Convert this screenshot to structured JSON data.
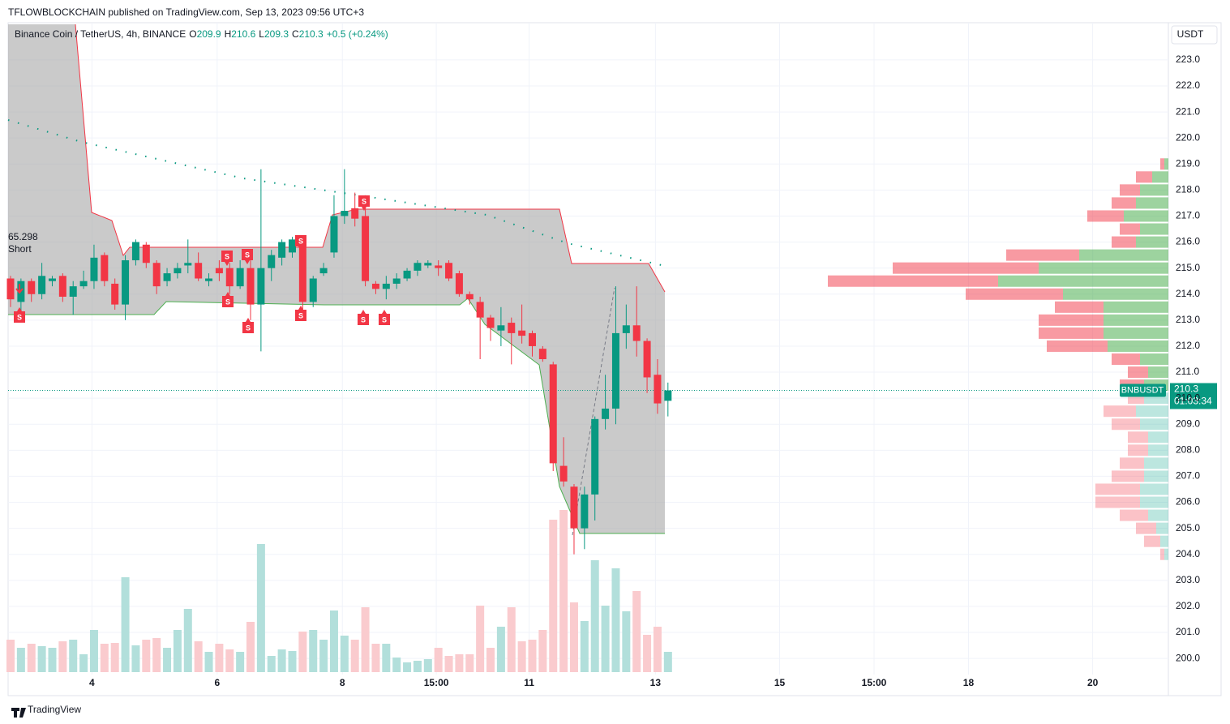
{
  "header": {
    "publisher": "TFLOWBLOCKCHAIN published on TradingView.com, Sep 13, 2023 09:56 UTC+3",
    "footer": "TradingView"
  },
  "chart_data": {
    "type": "candlestick",
    "title": "Binance Coin / TetherUS, 4h, BINANCE",
    "ohlc_prefixes": [
      "O",
      "H",
      "L",
      "C"
    ],
    "change": "+0.5 (+0.24%)",
    "currency": "USDT",
    "symbol": "BNBUSDT",
    "countdown": "01:03:34",
    "annotations": {
      "value": "65.298",
      "side": "Short",
      "signal": "S"
    },
    "up_color": "#089981",
    "down_color": "#f23645",
    "open": [
      214.6,
      213.7,
      214.5,
      214.0,
      214.5,
      214.7,
      213.9,
      214.3,
      214.5,
      215.5,
      214.4,
      213.6,
      215.3,
      215.9,
      215.2,
      214.5,
      214.8,
      215.1,
      215.2,
      214.5,
      215.0,
      215.0,
      214.3,
      215.0,
      213.6,
      215.0,
      215.4,
      215.6,
      216.0,
      213.7,
      214.8,
      215.6,
      217.0,
      217.3,
      217.0,
      214.4,
      214.2,
      214.4,
      214.6,
      214.9,
      215.1,
      215.1,
      215.2,
      214.8,
      214.0,
      213.7,
      213.1,
      212.6,
      212.9,
      212.6,
      212.5,
      211.9,
      211.3,
      207.4,
      206.6,
      205.0,
      206.3,
      209.2,
      209.6,
      212.5,
      212.8,
      212.2,
      210.9,
      209.9
    ],
    "high": [
      214.7,
      214.6,
      214.6,
      215.2,
      214.7,
      214.8,
      214.5,
      214.9,
      215.9,
      215.6,
      214.6,
      215.5,
      216.1,
      216.0,
      215.3,
      215.0,
      215.2,
      216.1,
      215.6,
      214.8,
      215.3,
      215.2,
      215.3,
      215.4,
      218.8,
      215.7,
      216.1,
      216.2,
      216.1,
      214.7,
      215.2,
      217.8,
      218.8,
      217.9,
      217.8,
      214.5,
      214.7,
      214.8,
      215.0,
      215.3,
      215.3,
      215.3,
      215.3,
      214.9,
      214.1,
      213.9,
      213.2,
      213.5,
      213.1,
      213.6,
      212.6,
      212.0,
      211.4,
      208.5,
      206.7,
      206.6,
      209.3,
      210.9,
      214.3,
      213.6,
      214.3,
      212.3,
      211.5,
      210.6
    ],
    "low": [
      213.5,
      213.3,
      213.7,
      213.8,
      214.3,
      213.7,
      213.2,
      214.2,
      214.2,
      214.3,
      213.4,
      213.0,
      215.1,
      215.0,
      214.0,
      214.3,
      214.6,
      214.8,
      214.5,
      214.3,
      214.5,
      214.0,
      214.2,
      213.0,
      211.8,
      214.5,
      215.1,
      215.4,
      213.3,
      213.5,
      214.7,
      215.4,
      216.7,
      216.6,
      214.3,
      214.0,
      213.8,
      214.2,
      214.5,
      214.7,
      215.0,
      214.7,
      214.5,
      213.9,
      213.6,
      211.5,
      212.2,
      212.0,
      211.3,
      212.1,
      211.6,
      211.4,
      207.2,
      206.6,
      204.0,
      204.2,
      205.3,
      208.8,
      209.0,
      211.9,
      211.6,
      210.2,
      209.4,
      209.3
    ],
    "close": [
      213.8,
      214.5,
      214.0,
      214.7,
      214.6,
      213.9,
      214.3,
      214.5,
      215.4,
      214.5,
      213.6,
      215.3,
      216.0,
      215.2,
      214.3,
      214.8,
      215.0,
      215.2,
      214.6,
      214.6,
      214.8,
      214.3,
      215.0,
      213.6,
      215.0,
      215.5,
      216.0,
      216.1,
      213.7,
      214.6,
      215.0,
      217.0,
      217.2,
      216.9,
      214.5,
      214.2,
      214.4,
      214.6,
      214.9,
      215.2,
      215.2,
      215.0,
      214.6,
      214.0,
      213.8,
      213.1,
      212.7,
      212.8,
      212.5,
      212.4,
      212.0,
      211.5,
      207.5,
      206.8,
      205.0,
      206.3,
      209.2,
      209.6,
      212.5,
      212.8,
      212.2,
      210.8,
      209.8,
      210.3
    ],
    "volume": [
      40,
      30,
      35,
      32,
      30,
      38,
      40,
      22,
      52,
      35,
      36,
      117,
      33,
      40,
      42,
      30,
      52,
      78,
      38,
      25,
      35,
      28,
      25,
      62,
      158,
      20,
      28,
      26,
      50,
      52,
      40,
      76,
      45,
      40,
      80,
      35,
      35,
      18,
      12,
      14,
      16,
      30,
      20,
      22,
      22,
      82,
      30,
      56,
      80,
      38,
      40,
      52,
      188,
      200,
      86,
      63,
      138,
      82,
      128,
      75,
      100,
      46,
      56,
      25
    ],
    "xticks": [
      {
        "value": 7.8,
        "label": "4"
      },
      {
        "value": 19.8,
        "label": "6"
      },
      {
        "value": 31.8,
        "label": "8"
      },
      {
        "value": 40.8,
        "label": "15:00"
      },
      {
        "value": 49.7,
        "label": "11"
      },
      {
        "value": 61.8,
        "label": "13"
      },
      {
        "value": 73.7,
        "label": "15"
      },
      {
        "value": 82.75,
        "label": "15:00"
      },
      {
        "value": 91.8,
        "label": "18"
      },
      {
        "value": 103.7,
        "label": "20"
      }
    ],
    "ylim": [
      198.57,
      224.43
    ],
    "yticks": [
      {
        "value": 200,
        "label": "200.0"
      },
      {
        "value": 201,
        "label": "201.0"
      },
      {
        "value": 202,
        "label": "202.0"
      },
      {
        "value": 203,
        "label": "203.0"
      },
      {
        "value": 204,
        "label": "204.0"
      },
      {
        "value": 205,
        "label": "205.0"
      },
      {
        "value": 206,
        "label": "206.0"
      },
      {
        "value": 207,
        "label": "207.0"
      },
      {
        "value": 208,
        "label": "208.0"
      },
      {
        "value": 209,
        "label": "209.0"
      },
      {
        "value": 210,
        "label": "210.0"
      },
      {
        "value": 211,
        "label": "211.0"
      },
      {
        "value": 212,
        "label": "212.0"
      },
      {
        "value": 213,
        "label": "213.0"
      },
      {
        "value": 214,
        "label": "214.0"
      },
      {
        "value": 215,
        "label": "215.0"
      },
      {
        "value": 216,
        "label": "216.0"
      },
      {
        "value": 217,
        "label": "217.0"
      },
      {
        "value": 218,
        "label": "218.0"
      },
      {
        "value": 219,
        "label": "219.0"
      },
      {
        "value": 220,
        "label": "220.0"
      },
      {
        "value": 221,
        "label": "221.0"
      },
      {
        "value": 222,
        "label": "222.0"
      },
      {
        "value": 223,
        "label": "223.0"
      }
    ],
    "grid": true,
    "profile": {
      "levels": [
        219,
        218.5,
        218,
        217.5,
        217,
        216.5,
        216,
        215.5,
        215,
        214.5,
        214,
        213.5,
        213,
        212.5,
        212,
        211.5,
        211,
        210.5,
        210,
        209.5,
        209,
        208.5,
        208,
        207.5,
        207,
        206.5,
        206,
        205.5,
        205,
        204.5,
        204
      ],
      "up": [
        5,
        20,
        35,
        40,
        55,
        35,
        40,
        110,
        160,
        210,
        130,
        80,
        80,
        80,
        75,
        35,
        25,
        30,
        30,
        40,
        35,
        25,
        25,
        30,
        30,
        35,
        35,
        25,
        15,
        10,
        5
      ],
      "down": [
        5,
        20,
        25,
        30,
        45,
        25,
        30,
        90,
        180,
        210,
        120,
        60,
        80,
        80,
        75,
        35,
        25,
        30,
        20,
        40,
        35,
        25,
        25,
        30,
        40,
        55,
        55,
        35,
        25,
        20,
        5
      ]
    }
  }
}
